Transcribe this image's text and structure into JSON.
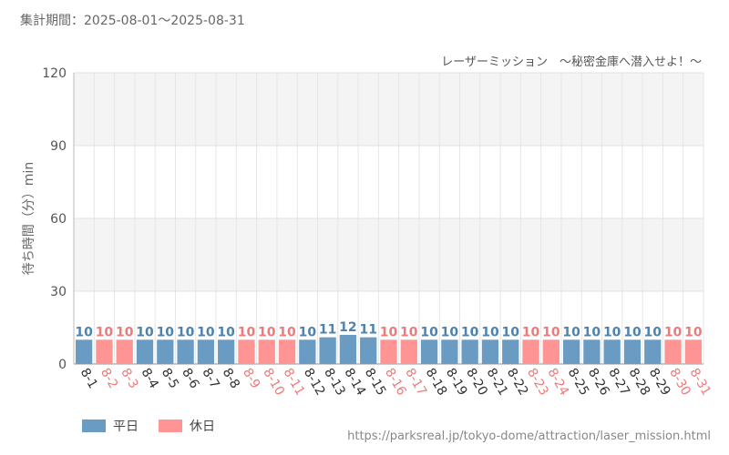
{
  "period_label": "集計期間：2025-08-01～2025-08-31",
  "source_url": "https://parksreal.jp/tokyo-dome/attraction/laser_mission.html",
  "colors": {
    "weekday": "#6a9bc3",
    "holiday": "#ff9494",
    "weekday_text": "#4f82ad",
    "holiday_text": "#f07a7a"
  },
  "chart_data": {
    "type": "bar",
    "title": "レーザーミッション　～秘密金庫へ潜入せよ！～",
    "ylabel": "待ち時間（分）min",
    "ylim": [
      0,
      120
    ],
    "yticks": [
      0,
      30,
      60,
      90,
      120
    ],
    "categories": [
      "8-1",
      "8-2",
      "8-3",
      "8-4",
      "8-5",
      "8-6",
      "8-7",
      "8-8",
      "8-9",
      "8-10",
      "8-11",
      "8-12",
      "8-13",
      "8-14",
      "8-15",
      "8-16",
      "8-17",
      "8-18",
      "8-19",
      "8-20",
      "8-21",
      "8-22",
      "8-23",
      "8-24",
      "8-25",
      "8-26",
      "8-27",
      "8-28",
      "8-29",
      "8-30",
      "8-31"
    ],
    "values": [
      10,
      10,
      10,
      10,
      10,
      10,
      10,
      10,
      10,
      10,
      10,
      10,
      11,
      12,
      11,
      10,
      10,
      10,
      10,
      10,
      10,
      10,
      10,
      10,
      10,
      10,
      10,
      10,
      10,
      10,
      10
    ],
    "day_type": [
      "weekday",
      "holiday",
      "holiday",
      "weekday",
      "weekday",
      "weekday",
      "weekday",
      "weekday",
      "holiday",
      "holiday",
      "holiday",
      "weekday",
      "weekday",
      "weekday",
      "weekday",
      "holiday",
      "holiday",
      "weekday",
      "weekday",
      "weekday",
      "weekday",
      "weekday",
      "holiday",
      "holiday",
      "weekday",
      "weekday",
      "weekday",
      "weekday",
      "weekday",
      "holiday",
      "holiday"
    ],
    "legend": [
      {
        "name": "平日",
        "key": "weekday"
      },
      {
        "name": "休日",
        "key": "holiday"
      }
    ],
    "legend_position": "bottom-left",
    "grid": true
  }
}
